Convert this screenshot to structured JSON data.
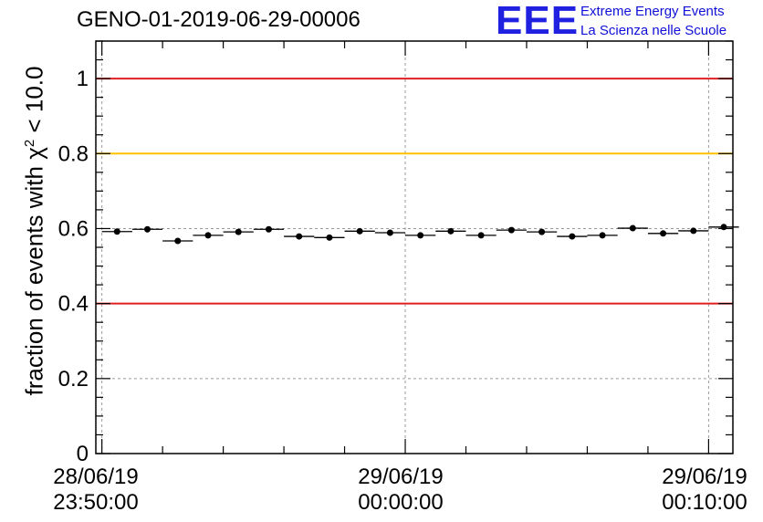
{
  "chart_data": {
    "type": "scatter",
    "title": "GENO-01-2019-06-29-00006",
    "ylabel": {
      "prefix": "fraction of events with ",
      "chi": "χ",
      "sup": "2",
      "suffix": " < 10.0"
    },
    "xlabel": "",
    "ylim": [
      0,
      1.1
    ],
    "y_ticks": [
      0,
      0.2,
      0.4,
      0.6,
      0.8,
      1
    ],
    "y_tick_labels": [
      "0",
      "0.2",
      "0.4",
      "0.6",
      "0.8",
      "1"
    ],
    "xlim_minutes": [
      -10.2,
      10.8
    ],
    "x_major_minutes": [
      -10,
      0,
      10
    ],
    "x_tick_labels": [
      {
        "date": "28/06/19",
        "time": "23:50:00"
      },
      {
        "date": "29/06/19",
        "time": "00:00:00"
      },
      {
        "date": "29/06/19",
        "time": "00:10:00"
      }
    ],
    "grid": true,
    "reference_lines": [
      {
        "y": 1.0,
        "color": "#e02020"
      },
      {
        "y": 0.8,
        "color": "#ffc000"
      },
      {
        "y": 0.4,
        "color": "#e02020"
      }
    ],
    "series": [
      {
        "name": "fraction",
        "bin_width_minutes": 1,
        "x_minutes": [
          -9.5,
          -8.5,
          -7.5,
          -6.5,
          -5.5,
          -4.5,
          -3.5,
          -2.5,
          -1.5,
          -0.5,
          0.5,
          1.5,
          2.5,
          3.5,
          4.5,
          5.5,
          6.5,
          7.5,
          8.5,
          9.5,
          10.5
        ],
        "y": [
          0.592,
          0.598,
          0.567,
          0.582,
          0.591,
          0.598,
          0.579,
          0.576,
          0.593,
          0.589,
          0.582,
          0.593,
          0.582,
          0.596,
          0.591,
          0.579,
          0.582,
          0.601,
          0.587,
          0.594,
          0.604
        ],
        "y_err": [
          0.005,
          0.005,
          0.005,
          0.005,
          0.005,
          0.005,
          0.005,
          0.005,
          0.005,
          0.005,
          0.005,
          0.005,
          0.005,
          0.005,
          0.005,
          0.005,
          0.005,
          0.005,
          0.005,
          0.005,
          0.005
        ]
      }
    ]
  },
  "logo": {
    "mark": "EEE",
    "line1": "Extreme Energy Events",
    "line2": "La Scienza nelle Scuole",
    "color": "#2020e0"
  }
}
